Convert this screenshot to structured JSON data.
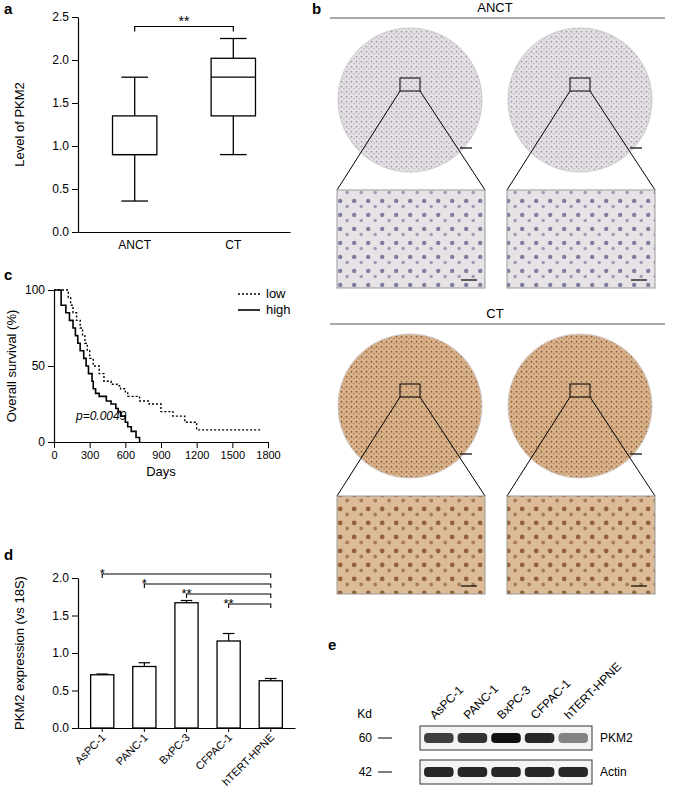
{
  "chart_data": [
    {
      "type": "box",
      "panel_label": "a",
      "categories": [
        "ANCT",
        "CT"
      ],
      "y_label": "Level of PKM2",
      "ylim": [
        0,
        2.5
      ],
      "yticks": [
        {
          "value": 0,
          "label": "0.0"
        },
        0.5,
        {
          "value": 1,
          "label": "1.0"
        },
        1.5,
        {
          "value": 2,
          "label": "2.0"
        },
        2.5
      ],
      "boxes": [
        {
          "min": 0.36,
          "q1": 0.9,
          "median": 0.9,
          "q3": 1.35,
          "max": 1.8
        },
        {
          "min": 0.9,
          "q1": 1.35,
          "median": 1.8,
          "q3": 2.02,
          "max": 2.25
        }
      ],
      "annotations": [
        {
          "from": "ANCT",
          "to": "CT",
          "text": "**"
        }
      ]
    },
    {
      "type": "step",
      "panel_label": "c",
      "x_label": "Days",
      "y_label": "Overall survival (%)",
      "xlim": [
        0,
        1800
      ],
      "xticks": [
        0,
        300,
        600,
        900,
        1200,
        1500,
        1800
      ],
      "ylim": [
        0,
        100
      ],
      "yticks": [
        0,
        50,
        100
      ],
      "legend": "top-right",
      "series": [
        {
          "name": "low",
          "color": "#000000",
          "line_style": "dotted",
          "x": [
            0,
            120,
            140,
            160,
            190,
            220,
            240,
            260,
            280,
            300,
            330,
            380,
            420,
            480,
            530,
            560,
            600,
            620,
            720,
            800,
            900,
            1000,
            1100,
            1200,
            1750
          ],
          "values": [
            100,
            95,
            90,
            85,
            80,
            75,
            70,
            65,
            60,
            55,
            50,
            45,
            40,
            38,
            37,
            35,
            33,
            30,
            27,
            25,
            20,
            17,
            13,
            8,
            8
          ]
        },
        {
          "name": "high",
          "color": "#000000",
          "line_style": "solid",
          "x": [
            0,
            60,
            100,
            130,
            160,
            180,
            200,
            220,
            250,
            270,
            290,
            320,
            330,
            350,
            380,
            440,
            480,
            520,
            540,
            560,
            600,
            620,
            650,
            690,
            720
          ],
          "values": [
            100,
            90,
            85,
            80,
            75,
            70,
            65,
            60,
            55,
            50,
            45,
            40,
            35,
            32,
            30,
            27,
            25,
            22,
            20,
            17,
            13,
            10,
            7,
            3,
            0
          ]
        }
      ],
      "annotations": [
        {
          "text": "p=0.0049"
        }
      ]
    },
    {
      "type": "bar",
      "panel_label": "d",
      "y_label": "PKM2 expression (vs 18S)",
      "categories": [
        "AsPC-1",
        "PANC-1",
        "BxPC-3",
        "CFPAC-1",
        "hTERT-HPNE"
      ],
      "values": [
        0.71,
        0.82,
        1.67,
        1.16,
        0.63
      ],
      "errors": [
        0.01,
        0.05,
        0.03,
        0.1,
        0.03
      ],
      "color": "#ffffff",
      "ylim": [
        0,
        2
      ],
      "yticks": [
        {
          "value": 0,
          "label": "0.0"
        },
        0.5,
        {
          "value": 1,
          "label": "1.0"
        },
        1.5,
        {
          "value": 2,
          "label": "2.0"
        }
      ],
      "annotations": [
        {
          "from": "AsPC-1",
          "to": "hTERT-HPNE",
          "text": "*"
        },
        {
          "from": "PANC-1",
          "to": "hTERT-HPNE",
          "text": "*"
        },
        {
          "from": "BxPC-3",
          "to": "hTERT-HPNE",
          "text": "**"
        },
        {
          "from": "CFPAC-1",
          "to": "hTERT-HPNE",
          "text": "**"
        }
      ]
    }
  ],
  "panel_b": {
    "panel_label": "b",
    "groups": [
      "ANCT",
      "CT"
    ]
  },
  "panel_e": {
    "panel_label": "e",
    "unit_label": "Kd",
    "lanes": [
      "AsPC-1",
      "PANC-1",
      "BxPC-3",
      "CFPAC-1",
      "hTERT-HPNE"
    ],
    "rows": [
      {
        "kd": 60,
        "label": "PKM2",
        "intensity": [
          0.8,
          0.85,
          1.0,
          0.9,
          0.5
        ]
      },
      {
        "kd": 42,
        "label": "Actin",
        "intensity": [
          0.9,
          0.9,
          0.9,
          0.9,
          0.9
        ]
      }
    ]
  }
}
